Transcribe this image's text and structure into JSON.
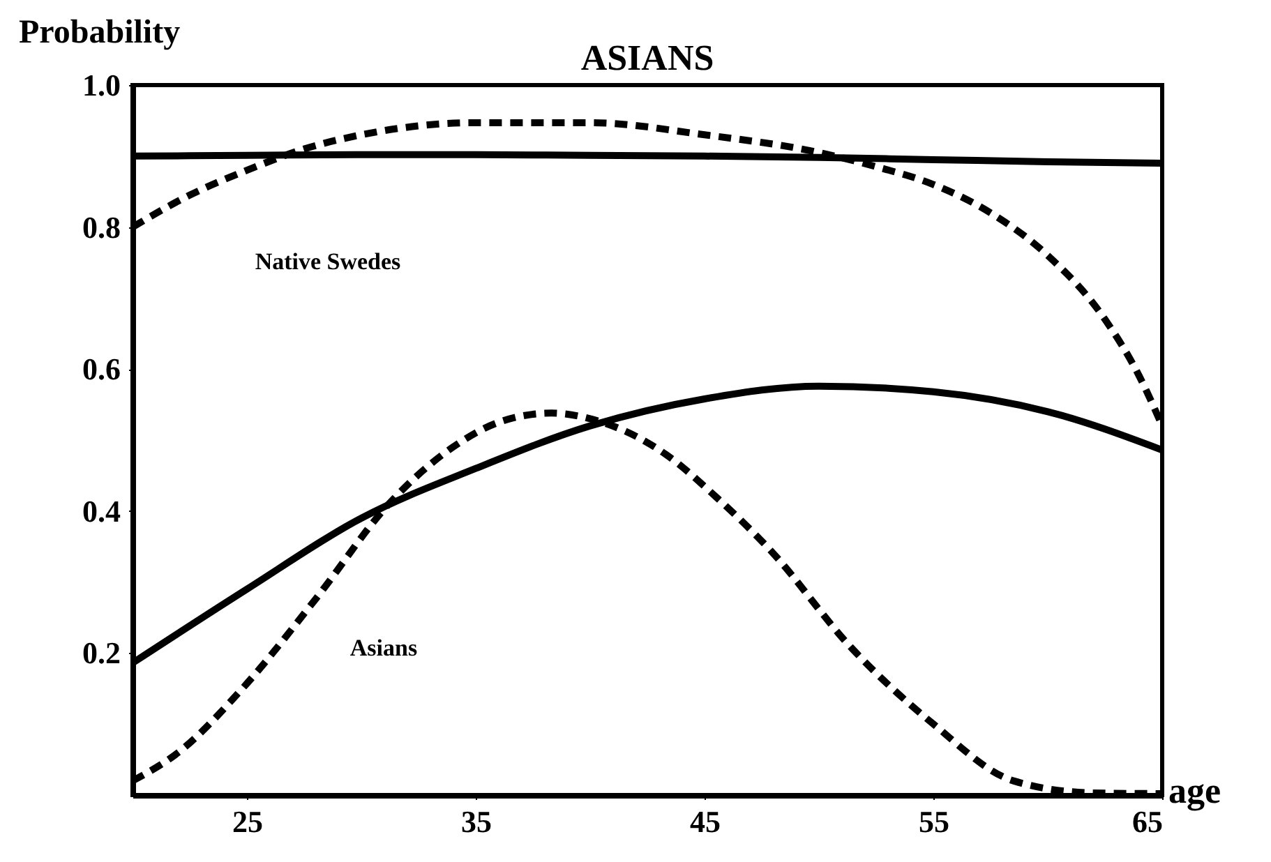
{
  "chart_data": {
    "type": "line",
    "title": "ASIANS",
    "xlabel": "age",
    "ylabel": "Probability",
    "xlim": [
      20,
      65
    ],
    "xticks": [
      25,
      35,
      45,
      55,
      65
    ],
    "ylim": [
      0,
      1.0
    ],
    "yticks": [
      0.2,
      0.4,
      0.6,
      0.8,
      {
        "value": 1.0,
        "label": "1.0"
      }
    ],
    "grid": false,
    "marker": "none",
    "series": [
      {
        "color": "#000000",
        "line_style": "solid",
        "x": [
          20,
          25,
          30,
          35,
          40,
          45,
          50,
          55,
          60,
          65
        ],
        "values": [
          0.9,
          0.901,
          0.902,
          0.902,
          0.901,
          0.9,
          0.898,
          0.895,
          0.892,
          0.89
        ]
      },
      {
        "color": "#000000",
        "line_style": "dashed",
        "x": [
          20,
          22.5,
          25,
          27.5,
          30,
          35,
          40,
          45,
          50,
          52.5,
          55,
          57.5,
          60,
          62.5,
          64,
          65
        ],
        "values": [
          0.8,
          0.845,
          0.88,
          0.91,
          0.93,
          0.947,
          0.947,
          0.93,
          0.905,
          0.885,
          0.86,
          0.82,
          0.76,
          0.67,
          0.59,
          0.52
        ]
      },
      {
        "color": "#000000",
        "line_style": "solid",
        "x": [
          20,
          25,
          30,
          35,
          40,
          45,
          50,
          55,
          60,
          65
        ],
        "values": [
          0.186,
          0.29,
          0.39,
          0.46,
          0.52,
          0.558,
          0.576,
          0.568,
          0.54,
          0.486
        ]
      },
      {
        "color": "#000000",
        "line_style": "dashed",
        "x": [
          20,
          22,
          24.8,
          28,
          31.2,
          34,
          36,
          38.3,
          40,
          43.3,
          45.5,
          47.9,
          51.4,
          55,
          58.5,
          62,
          65
        ],
        "values": [
          0.02,
          0.06,
          0.15,
          0.276,
          0.41,
          0.49,
          0.525,
          0.538,
          0.53,
          0.48,
          0.42,
          0.344,
          0.208,
          0.1,
          0.02,
          0.003,
          0.002
        ]
      }
    ],
    "annotations": [
      "Native Swedes",
      "Asians"
    ]
  }
}
